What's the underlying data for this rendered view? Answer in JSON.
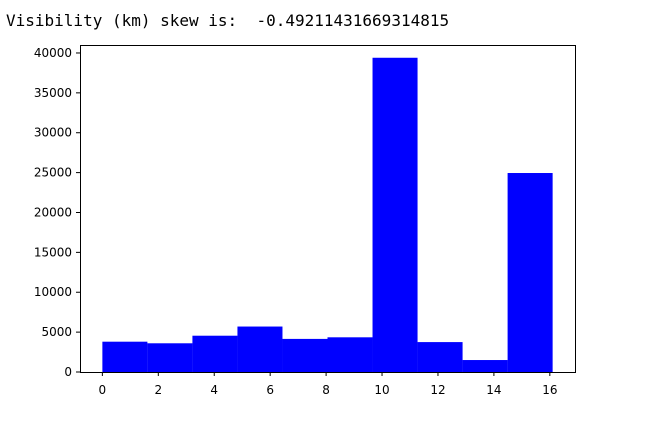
{
  "output": {
    "text": "Visibility (km) skew is:  -0.49211431669314815"
  },
  "chart_data": {
    "type": "bar",
    "title": "",
    "xlabel": "",
    "ylabel": "",
    "bar_color": "#0000ff",
    "xlim": [
      -0.8,
      16.9
    ],
    "ylim": [
      0,
      41000
    ],
    "grid": false,
    "x_ticks": [
      0,
      2,
      4,
      6,
      8,
      10,
      12,
      14,
      16
    ],
    "y_ticks": [
      0,
      5000,
      10000,
      15000,
      20000,
      25000,
      30000,
      35000,
      40000
    ],
    "bins": [
      {
        "x0": 0.0,
        "x1": 1.61,
        "value": 3800
      },
      {
        "x0": 1.61,
        "x1": 3.22,
        "value": 3600
      },
      {
        "x0": 3.22,
        "x1": 4.83,
        "value": 4550
      },
      {
        "x0": 4.83,
        "x1": 6.44,
        "value": 5700
      },
      {
        "x0": 6.44,
        "x1": 8.05,
        "value": 4150
      },
      {
        "x0": 8.05,
        "x1": 9.66,
        "value": 4350
      },
      {
        "x0": 9.66,
        "x1": 11.27,
        "value": 39400
      },
      {
        "x0": 11.27,
        "x1": 12.88,
        "value": 3750
      },
      {
        "x0": 12.88,
        "x1": 14.49,
        "value": 1500
      },
      {
        "x0": 14.49,
        "x1": 16.1,
        "value": 24950
      }
    ]
  }
}
